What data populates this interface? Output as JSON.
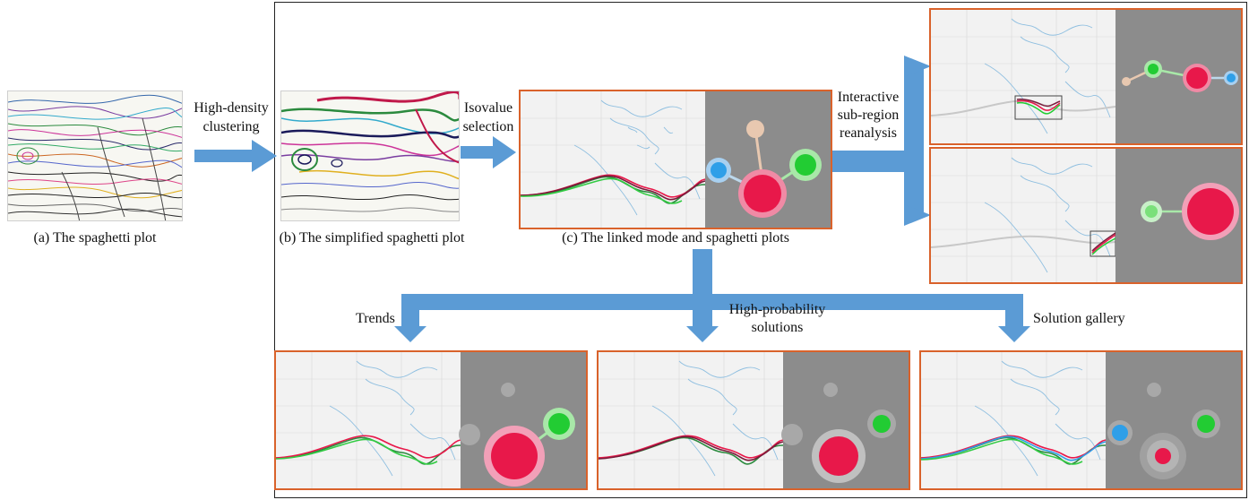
{
  "labels": {
    "a_caption": "(a) The spaghetti plot",
    "b_caption": "(b) The simplified spaghetti plot",
    "c_caption": "(c) The linked mode and spaghetti plots",
    "step1_line1": "High-density",
    "step1_line2": "clustering",
    "step2_line1": "Isovalue",
    "step2_line2": "selection",
    "step3_line1": "Interactive",
    "step3_line2": "sub-region",
    "step3_line3": "reanalysis",
    "trends": "Trends",
    "highprob_line1": "High-probability",
    "highprob_line2": "solutions",
    "gallery": "Solution gallery"
  },
  "colors": {
    "arrow": "#5b9bd5",
    "panel_border": "#d9622b",
    "mode_bg": "#8c8c8c",
    "map_bg": "#f2f2f2",
    "coast": "#8fbfe0",
    "red": "#e8184a",
    "green": "#22cc33",
    "blue": "#2f9fe8",
    "peach": "#e8c8b0"
  }
}
